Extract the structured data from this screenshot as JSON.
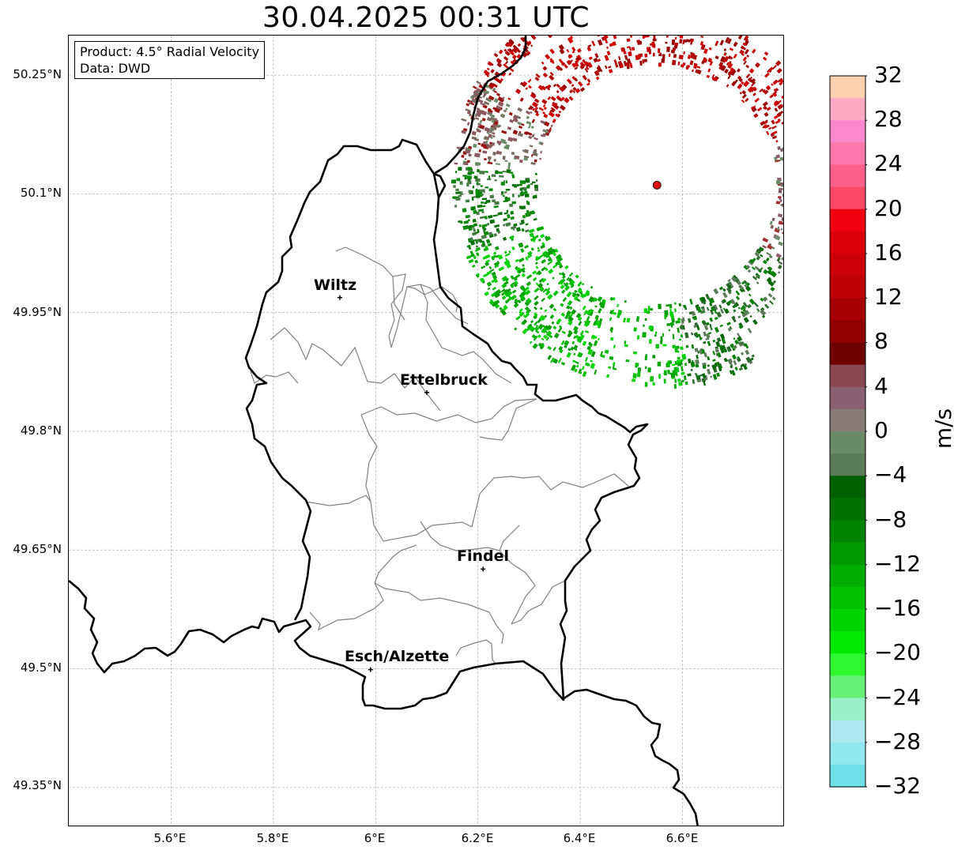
{
  "title": "30.04.2025 00:31 UTC",
  "info": {
    "product": "Product: 4.5° Radial Velocity",
    "data": "Data: DWD"
  },
  "axes": {
    "lat_labels": [
      "50.25°N",
      "50.1°N",
      "49.95°N",
      "49.8°N",
      "49.65°N",
      "49.5°N",
      "49.35°N"
    ],
    "lon_labels": [
      "5.6°E",
      "5.8°E",
      "6°E",
      "6.2°E",
      "6.4°E",
      "6.6°E"
    ],
    "lat_range": [
      49.3,
      50.3
    ],
    "lon_range": [
      5.4,
      6.8
    ]
  },
  "cities": [
    {
      "name": "Wiltz",
      "lon": 5.93,
      "lat": 49.969
    },
    {
      "name": "Ettelbruck",
      "lon": 6.1,
      "lat": 49.849
    },
    {
      "name": "Findel",
      "lon": 6.21,
      "lat": 49.626
    },
    {
      "name": "Esch/Alzette",
      "lon": 5.99,
      "lat": 49.499
    }
  ],
  "radar_site": {
    "lon": 6.55,
    "lat": 50.111,
    "color": "#dd1111"
  },
  "colorbar": {
    "unit": "m/s",
    "min": -32,
    "max": 32,
    "tick_labels": [
      "32",
      "28",
      "24",
      "20",
      "16",
      "12",
      "8",
      "4",
      "0",
      "−4",
      "−8",
      "−12",
      "−16",
      "−20",
      "−24",
      "−28",
      "−32"
    ],
    "colors_top_to_bottom": [
      "#fdd0b0",
      "#fdaac4",
      "#fc88cc",
      "#fc78aa",
      "#fc6088",
      "#fa4866",
      "#f00010",
      "#dc000c",
      "#cc0008",
      "#bc0006",
      "#a60004",
      "#900000",
      "#700000",
      "#8a4850",
      "#8a6070",
      "#8a7a78",
      "#6a8a68",
      "#5a7a58",
      "#006000",
      "#007000",
      "#008400",
      "#009800",
      "#00ac00",
      "#00c000",
      "#00d400",
      "#00e800",
      "#30f830",
      "#66f078",
      "#99f0c8",
      "#b0e8f0",
      "#8ee8ee",
      "#70e0e8"
    ]
  }
}
